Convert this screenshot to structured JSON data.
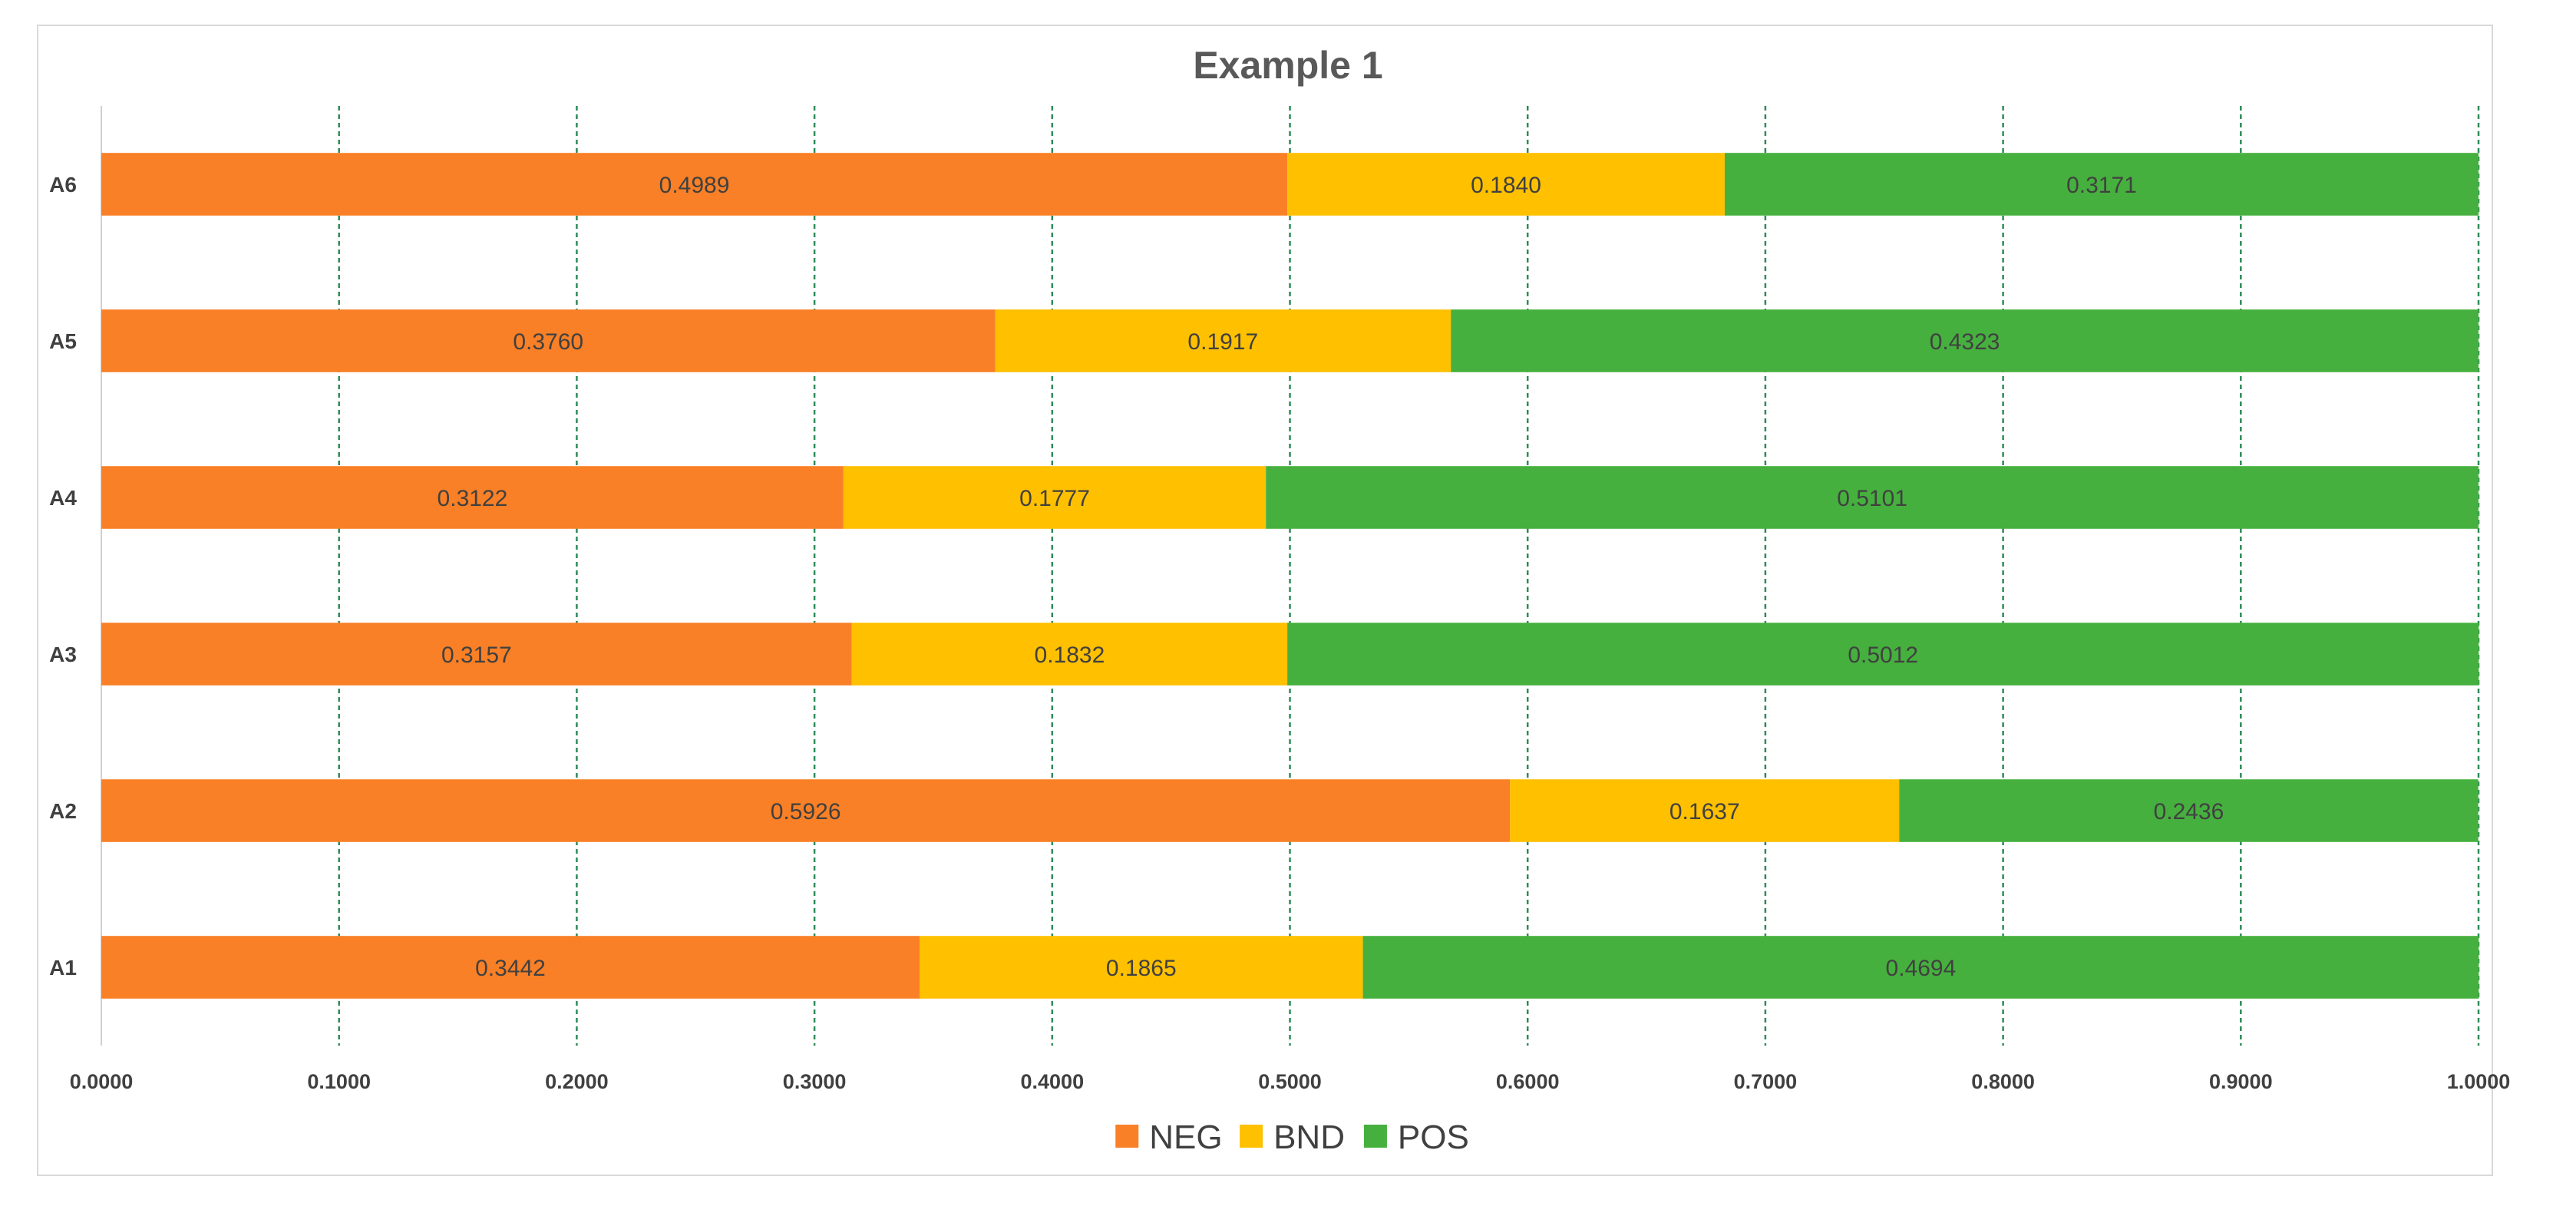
{
  "chart_data": {
    "type": "bar",
    "orientation": "horizontal",
    "stacked": true,
    "title": "Example 1",
    "categories": [
      "A1",
      "A2",
      "A3",
      "A4",
      "A5",
      "A6"
    ],
    "series": [
      {
        "name": "NEG",
        "color": "#F98026",
        "values": [
          0.3442,
          0.5926,
          0.3157,
          0.3122,
          0.376,
          0.4989
        ],
        "labels": [
          "0.3442",
          "0.5926",
          "0.3157",
          "0.3122",
          "0.3760",
          "0.4989"
        ]
      },
      {
        "name": "BND",
        "color": "#FFC000",
        "values": [
          0.1865,
          0.1637,
          0.1832,
          0.1777,
          0.1917,
          0.184
        ],
        "labels": [
          "0.1865",
          "0.1637",
          "0.1832",
          "0.1777",
          "0.1917",
          "0.1840"
        ]
      },
      {
        "name": "POS",
        "color": "#46B03E",
        "values": [
          0.4694,
          0.2436,
          0.5012,
          0.5101,
          0.4323,
          0.3171
        ],
        "labels": [
          "0.4694",
          "0.2436",
          "0.5012",
          "0.5101",
          "0.4323",
          "0.3171"
        ]
      }
    ],
    "xlim": [
      0,
      1
    ],
    "xticks": [
      "0.0000",
      "0.1000",
      "0.2000",
      "0.3000",
      "0.4000",
      "0.5000",
      "0.6000",
      "0.7000",
      "0.8000",
      "0.9000",
      "1.0000"
    ],
    "grid": "vertical dashed",
    "gridColor": "#2E8B57",
    "legend": "bottom"
  }
}
